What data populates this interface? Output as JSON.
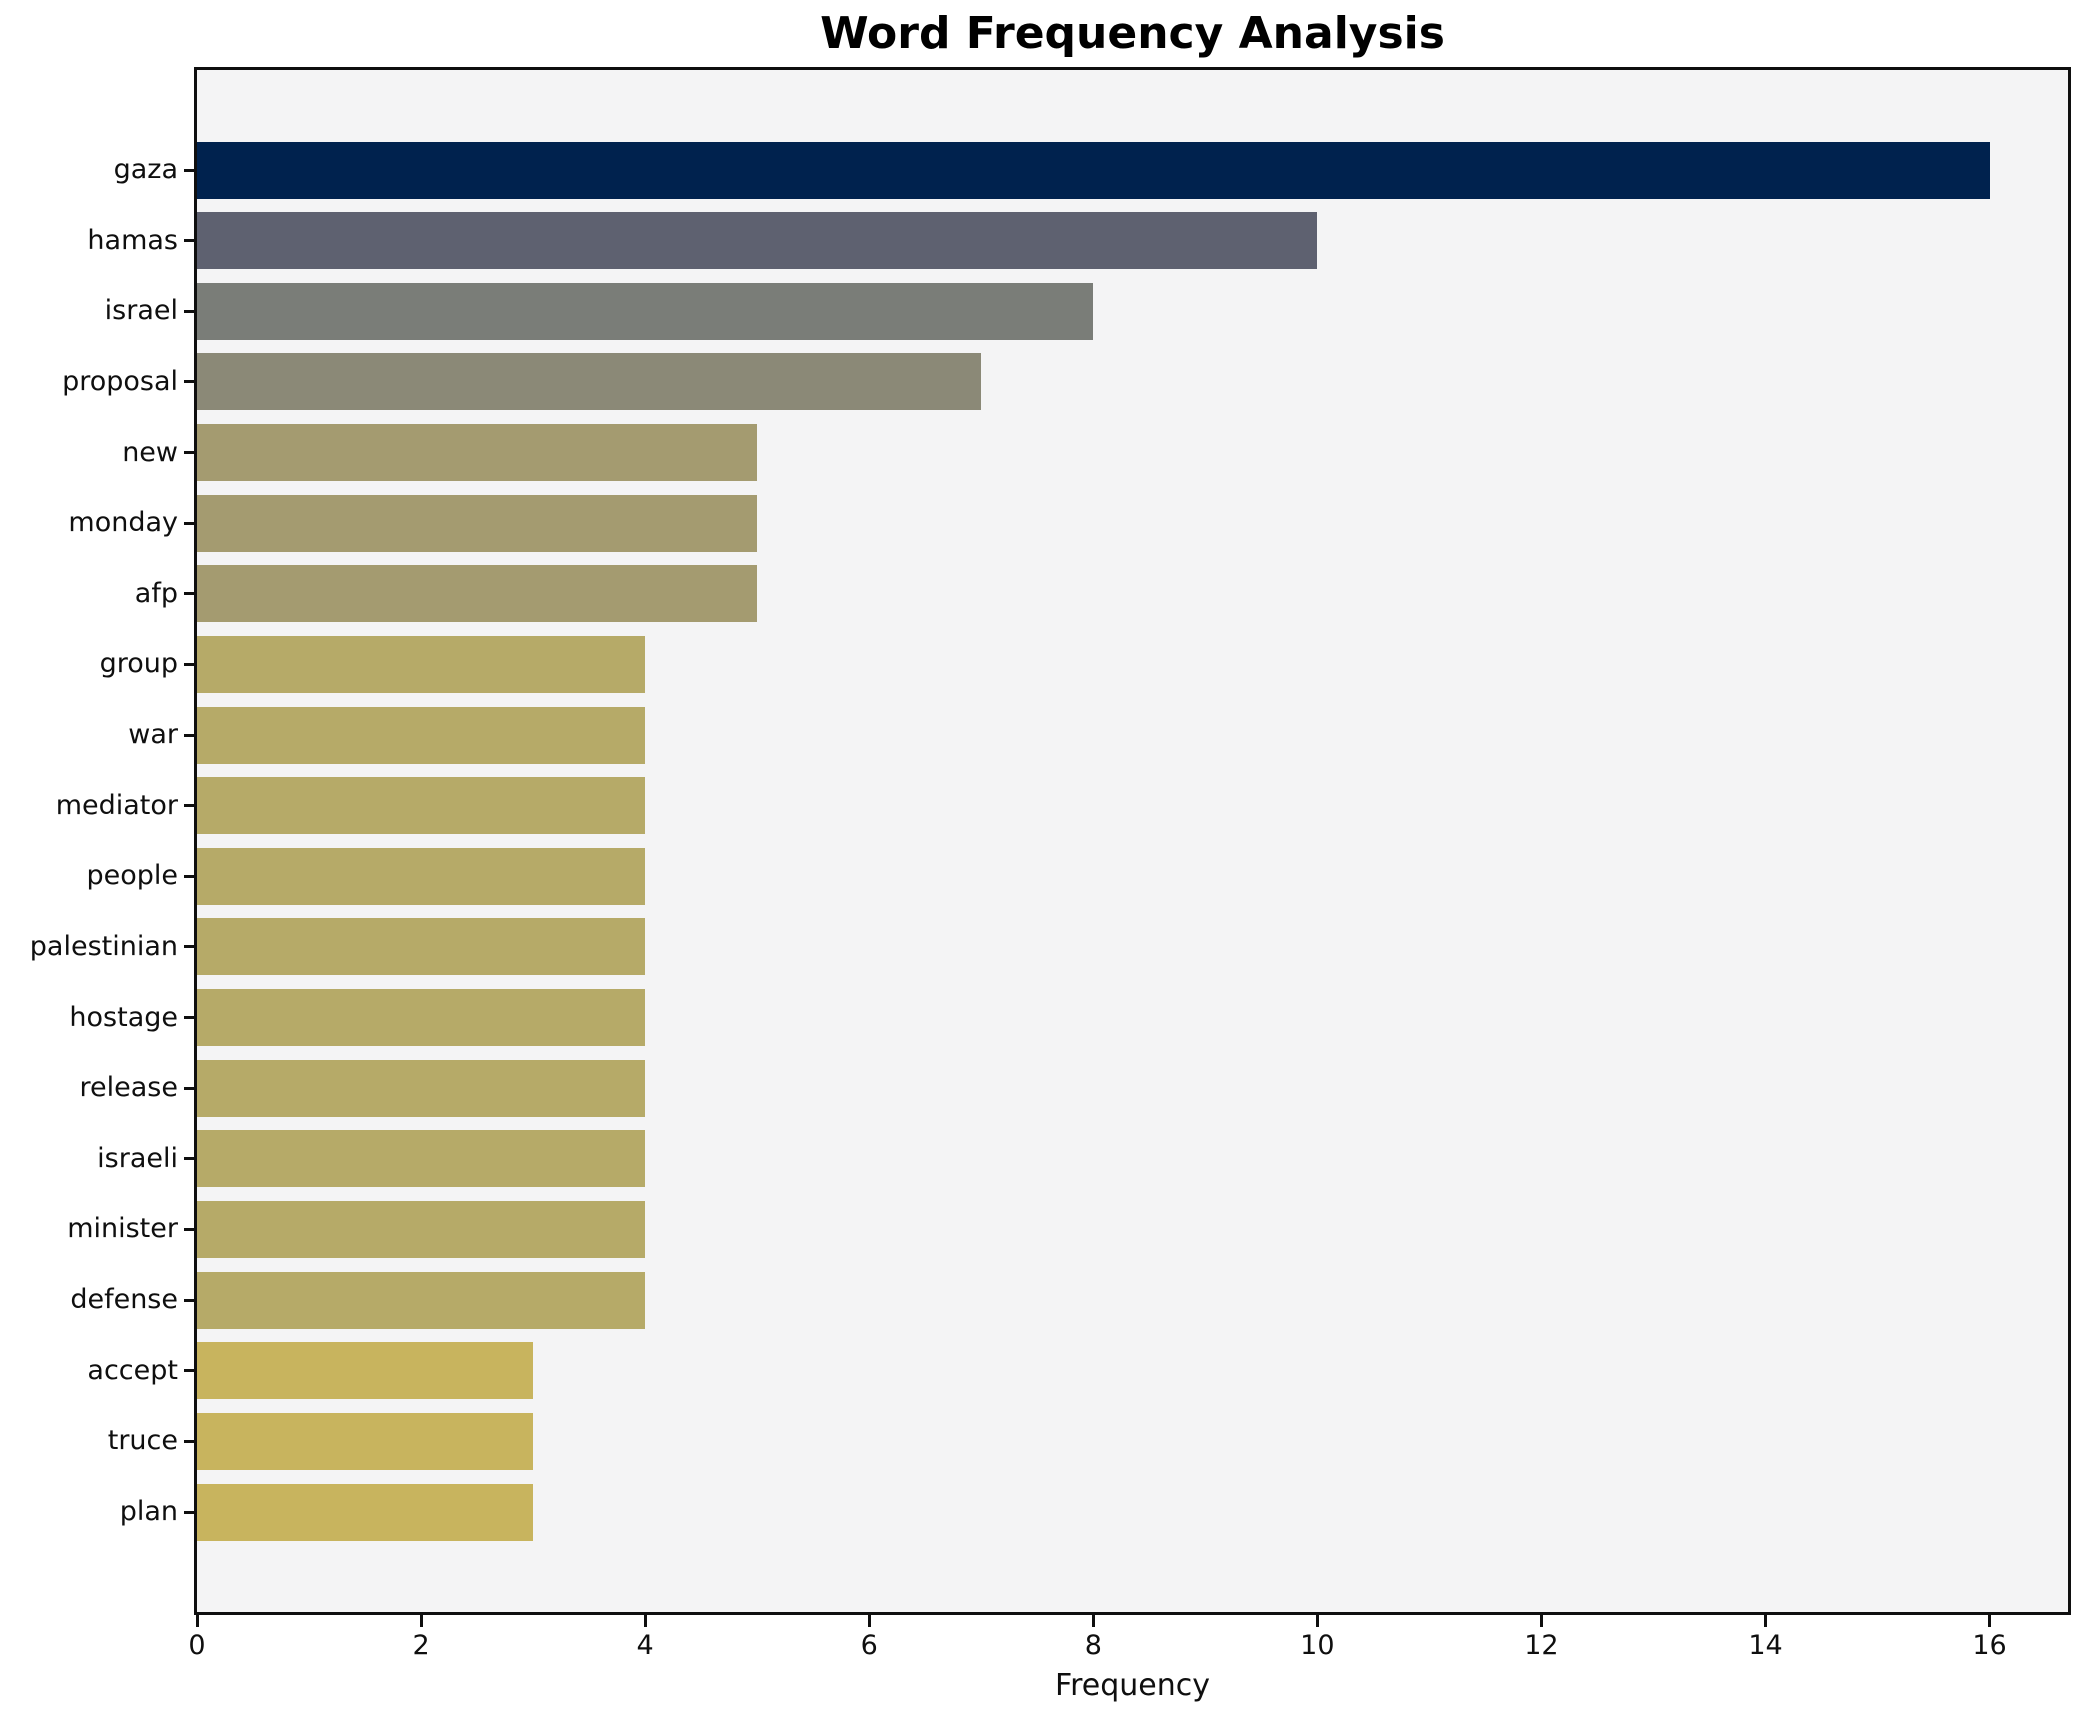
{
  "chart_data": {
    "type": "bar",
    "orientation": "horizontal",
    "title": "Word Frequency Analysis",
    "xlabel": "Frequency",
    "ylabel": "",
    "categories": [
      "gaza",
      "hamas",
      "israel",
      "proposal",
      "new",
      "monday",
      "afp",
      "group",
      "war",
      "mediator",
      "people",
      "palestinian",
      "hostage",
      "release",
      "israeli",
      "minister",
      "defense",
      "accept",
      "truce",
      "plan"
    ],
    "values": [
      16,
      10,
      8,
      7,
      5,
      5,
      5,
      4,
      4,
      4,
      4,
      4,
      4,
      4,
      4,
      4,
      4,
      3,
      3,
      3
    ],
    "bar_colors": [
      "#00224e",
      "#5e6170",
      "#7a7d78",
      "#8b8977",
      "#a49b70",
      "#a49b70",
      "#a49b70",
      "#b6aa68",
      "#b6aa68",
      "#b6aa68",
      "#b6aa68",
      "#b6aa68",
      "#b6aa68",
      "#b6aa68",
      "#b6aa68",
      "#b6aa68",
      "#b6aa68",
      "#c8b45e",
      "#c8b45e",
      "#c8b45e"
    ],
    "xticks": [
      0,
      2,
      4,
      6,
      8,
      10,
      12,
      14,
      16
    ],
    "xlim": [
      0,
      16.7
    ],
    "grid": false,
    "legend": null,
    "colormap": "cividis_r",
    "plot_bg": "#f4f4f5",
    "figure_bg": "#ffffff",
    "frame_color": "#0f0f0f"
  }
}
